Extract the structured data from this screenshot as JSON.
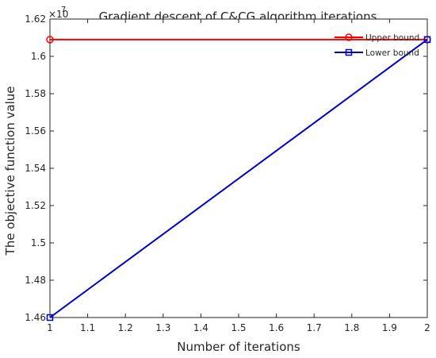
{
  "chart_data": {
    "type": "line",
    "title": "Gradient descent of C&CG algorithm iterations",
    "xlabel": "Number of iterations",
    "ylabel": "The objective function value",
    "y_exponent_label": "×10",
    "y_exponent_power": "7",
    "xlim": [
      1,
      2
    ],
    "ylim": [
      1.46,
      1.62
    ],
    "x_ticks": [
      "1",
      "1.1",
      "1.2",
      "1.3",
      "1.4",
      "1.5",
      "1.6",
      "1.7",
      "1.8",
      "1.9",
      "2"
    ],
    "y_ticks": [
      "1.46",
      "1.48",
      "1.5",
      "1.52",
      "1.54",
      "1.56",
      "1.58",
      "1.6",
      "1.62"
    ],
    "x_tick_values": [
      1,
      1.1,
      1.2,
      1.3,
      1.4,
      1.5,
      1.6,
      1.7,
      1.8,
      1.9,
      2
    ],
    "y_tick_values": [
      1.46,
      1.48,
      1.5,
      1.52,
      1.54,
      1.56,
      1.58,
      1.6,
      1.62
    ],
    "grid": false,
    "legend_position": "top-right",
    "series": [
      {
        "name": "Upper bound",
        "marker": "circle",
        "color": "#ff0000",
        "x": [
          1,
          2
        ],
        "y": [
          1.609,
          1.609
        ]
      },
      {
        "name": "Lower bound",
        "marker": "square",
        "color": "#0000cc",
        "x": [
          1,
          2
        ],
        "y": [
          1.46,
          1.609
        ]
      }
    ]
  }
}
